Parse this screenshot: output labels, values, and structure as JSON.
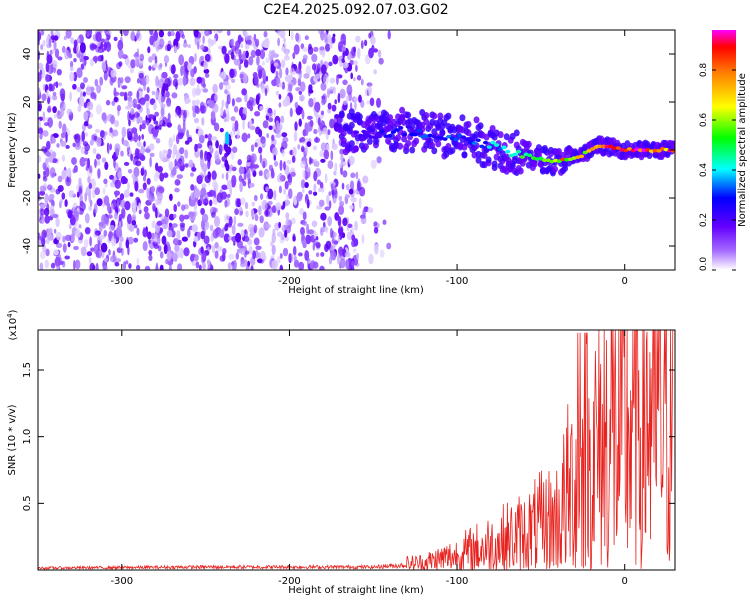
{
  "title": "C2E4.2025.092.07.03.G02",
  "chart_data": [
    {
      "type": "heatmap",
      "xlabel": "Height of straight line (km)",
      "ylabel": "Frequency (Hz)",
      "xlim": [
        -350,
        30
      ],
      "ylim": [
        -50,
        50
      ],
      "xticks": [
        -300,
        -200,
        -100,
        0
      ],
      "yticks": [
        -40,
        -20,
        0,
        20,
        40
      ],
      "colorbar": {
        "label": "Normalized spectral amplitude",
        "range": [
          0.0,
          0.96
        ],
        "ticks": [
          "0.0",
          "0.2",
          "0.4",
          "0.6",
          "0.8"
        ],
        "tick_values": [
          0.0,
          0.2,
          0.4,
          0.6,
          0.8
        ]
      },
      "signal_track": [
        {
          "x": -170,
          "f": 8,
          "a": 0.15
        },
        {
          "x": -150,
          "f": 7,
          "a": 0.25
        },
        {
          "x": -130,
          "f": 8,
          "a": 0.3
        },
        {
          "x": -110,
          "f": 6,
          "a": 0.32
        },
        {
          "x": -90,
          "f": 4,
          "a": 0.35
        },
        {
          "x": -70,
          "f": 0,
          "a": 0.45
        },
        {
          "x": -55,
          "f": -3,
          "a": 0.6
        },
        {
          "x": -40,
          "f": -5,
          "a": 0.8
        },
        {
          "x": -25,
          "f": -2,
          "a": 0.7
        },
        {
          "x": -15,
          "f": 2,
          "a": 0.85
        },
        {
          "x": 0,
          "f": 0,
          "a": 0.9
        },
        {
          "x": 15,
          "f": 0,
          "a": 0.92
        },
        {
          "x": 28,
          "f": 0,
          "a": 0.9
        }
      ]
    },
    {
      "type": "line",
      "xlabel": "Height of straight line (km)",
      "ylabel": "SNR (10 * v/v)",
      "y_scale_label": "(x10",
      "y_scale_exp": "4",
      "y_scale_close": ")",
      "xlim": [
        -350,
        30
      ],
      "ylim": [
        0,
        1.8
      ],
      "xticks": [
        -300,
        -200,
        -100,
        0
      ],
      "yticks": [
        0.5,
        1.0,
        1.5
      ],
      "ytick_labels": [
        "0.5",
        "1.0",
        "1.5"
      ],
      "color": "#e8231f",
      "envelope": [
        {
          "x": -350,
          "y": 0.02
        },
        {
          "x": -250,
          "y": 0.03
        },
        {
          "x": -150,
          "y": 0.03
        },
        {
          "x": -120,
          "y": 0.06
        },
        {
          "x": -100,
          "y": 0.12
        },
        {
          "x": -80,
          "y": 0.2
        },
        {
          "x": -60,
          "y": 0.28
        },
        {
          "x": -40,
          "y": 0.4
        },
        {
          "x": -30,
          "y": 0.7
        },
        {
          "x": -20,
          "y": 0.9
        },
        {
          "x": -10,
          "y": 1.1
        },
        {
          "x": 0,
          "y": 1.2
        },
        {
          "x": 15,
          "y": 1.4
        },
        {
          "x": 30,
          "y": 1.55
        }
      ]
    }
  ]
}
